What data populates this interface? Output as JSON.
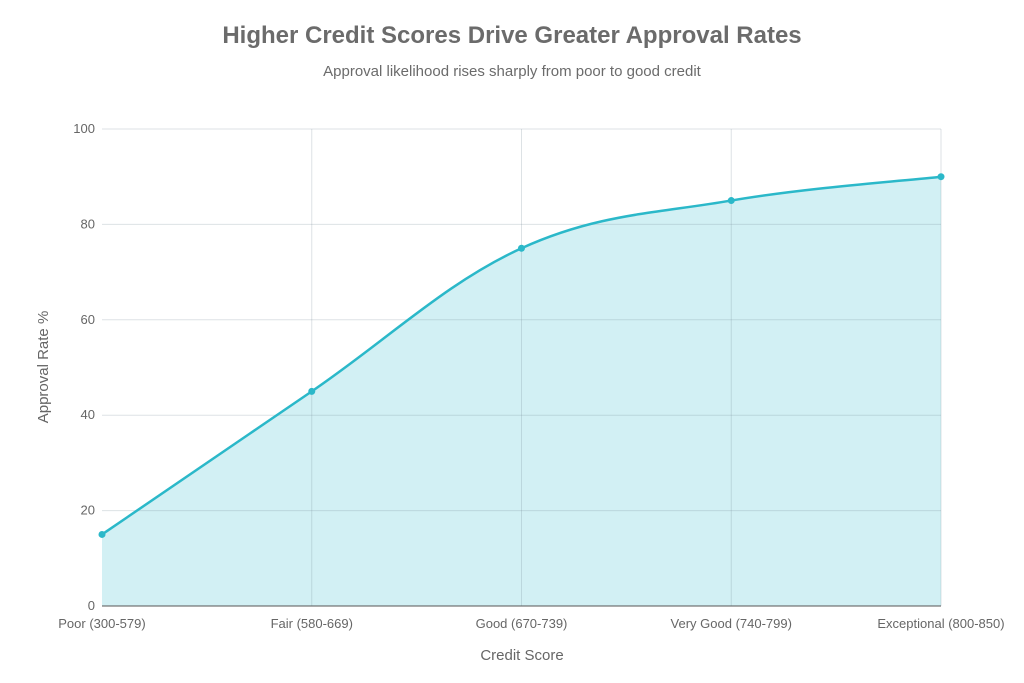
{
  "chart_data": {
    "type": "area",
    "title": "Higher Credit Scores Drive Greater Approval Rates",
    "subtitle": "Approval likelihood rises sharply from poor to good credit",
    "xlabel": "Credit Score",
    "ylabel": "Approval Rate %",
    "categories": [
      "Poor (300-579)",
      "Fair (580-669)",
      "Good (670-739)",
      "Very Good (740-799)",
      "Exceptional (800-850)"
    ],
    "values": [
      15,
      45,
      75,
      85,
      90
    ],
    "ylim": [
      0,
      100
    ],
    "yticks": [
      0,
      20,
      40,
      60,
      80,
      100
    ],
    "grid": true,
    "line_color": "#2bb8c9",
    "fill_color": "#d2f0f4"
  }
}
